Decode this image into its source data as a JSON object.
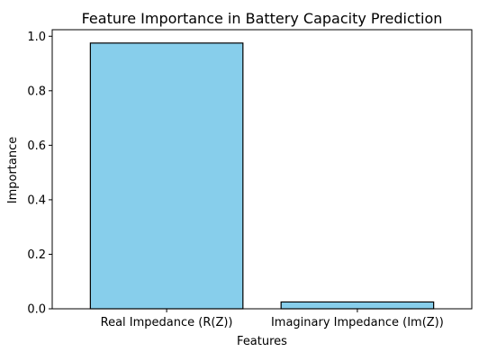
{
  "chart_data": {
    "type": "bar",
    "title": "Feature Importance in Battery Capacity Prediction",
    "xlabel": "Features",
    "ylabel": "Importance",
    "categories": [
      "Real Impedance (R(Z))",
      "Imaginary Impedance (Im(Z))"
    ],
    "values": [
      0.975,
      0.025
    ],
    "ylim": [
      0,
      1.024
    ],
    "yticks": [
      {
        "value": 0.0,
        "label": "0.0"
      },
      {
        "value": 0.2,
        "label": "0.2"
      },
      {
        "value": 0.4,
        "label": "0.4"
      },
      {
        "value": 0.6,
        "label": "0.6"
      },
      {
        "value": 0.8,
        "label": "0.8"
      },
      {
        "value": 1.0,
        "label": "1.0"
      }
    ],
    "bar_color": "#87ceeb",
    "edge_color": "#000000",
    "grid": false,
    "legend": false
  }
}
